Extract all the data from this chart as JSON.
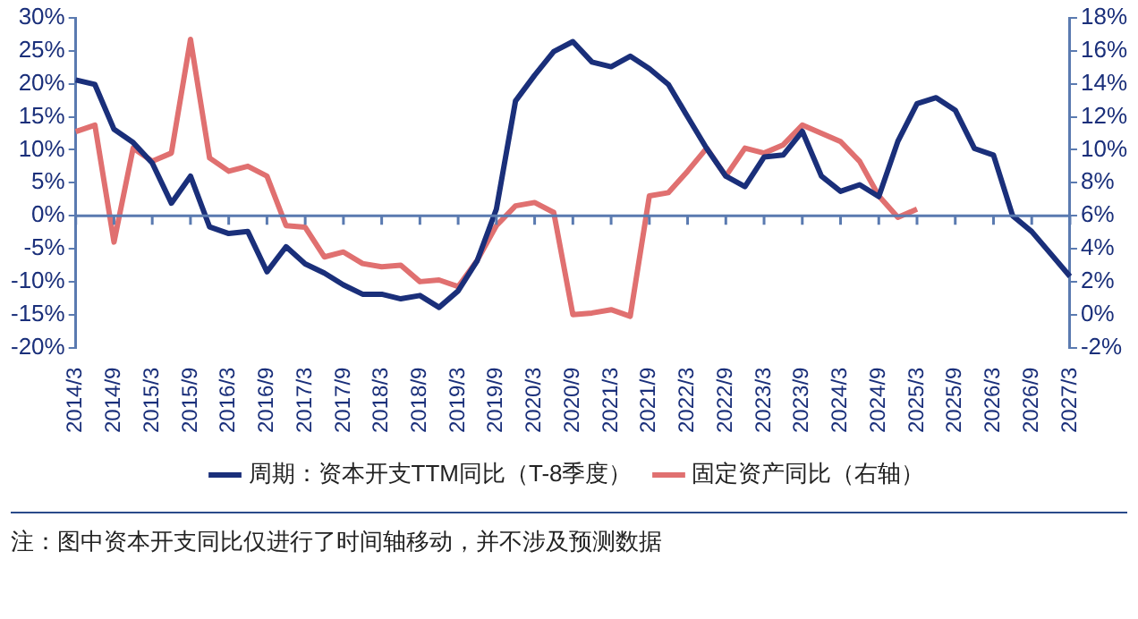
{
  "chart_data": {
    "type": "line",
    "categories": [
      "2014/3",
      null,
      "2014/9",
      null,
      "2015/3",
      null,
      "2015/9",
      null,
      "2016/3",
      null,
      "2016/9",
      null,
      "2017/3",
      null,
      "2017/9",
      null,
      "2018/3",
      null,
      "2018/9",
      null,
      "2019/3",
      null,
      "2019/9",
      null,
      "2020/3",
      null,
      "2020/9",
      null,
      "2021/3",
      null,
      "2021/9",
      null,
      "2022/3",
      null,
      "2022/9",
      null,
      "2023/3",
      null,
      "2023/9",
      null,
      "2024/3",
      null,
      "2024/9",
      null,
      "2025/3",
      null,
      "2025/9",
      null,
      "2026/3",
      null,
      "2026/9",
      null,
      "2027/3"
    ],
    "series": [
      {
        "name": "周期：资本开支TTM同比（T-8季度）",
        "color": "#1a2f7a",
        "values": [
          20.6,
          19.9,
          13.1,
          11.1,
          8,
          1.9,
          6,
          -1.7,
          -2.7,
          -2.4,
          -8.5,
          -4.7,
          -7.3,
          -8.7,
          -10.5,
          -11.9,
          -11.9,
          -12.6,
          -12.1,
          -13.9,
          -11.4,
          -6.8,
          1,
          17.4,
          21.3,
          24.9,
          26.4,
          23.3,
          22.6,
          24.2,
          22.3,
          19.9,
          15,
          10.2,
          6,
          4.4,
          8.9,
          9.2,
          12.8,
          6,
          3.7,
          4.7,
          2.9,
          11.3,
          17,
          17.9,
          16,
          10.2,
          9.2,
          0,
          -2.4,
          -5.8,
          -9.2
        ]
      },
      {
        "name": "固定资产同比（右轴）",
        "color": "#e07070",
        "axis": "y2",
        "values": [
          11.1,
          11.5,
          4.4,
          10.1,
          9.3,
          9.8,
          16.7,
          9.5,
          8.7,
          9,
          8.4,
          5.4,
          5.3,
          3.5,
          3.8,
          3.1,
          2.9,
          3,
          2,
          2.1,
          1.7,
          3.3,
          5.4,
          6.6,
          6.8,
          6.2,
          0,
          0.1,
          0.3,
          -0.1,
          7.2,
          7.4,
          8.7,
          10.1,
          8.4,
          10.1,
          9.8,
          10.3,
          11.5,
          11,
          10.5,
          9.3,
          7.2,
          5.9,
          6.4,
          null,
          null,
          null,
          null,
          null,
          null,
          null,
          null
        ]
      }
    ],
    "ylim": [
      -20,
      30
    ],
    "yticks": [
      {
        "value": -20,
        "label": "-20%"
      },
      {
        "value": -15,
        "label": "-15%"
      },
      {
        "value": -10,
        "label": "-10%"
      },
      {
        "value": -5,
        "label": "-5%"
      },
      {
        "value": 0,
        "label": "0%"
      },
      {
        "value": 5,
        "label": "5%"
      },
      {
        "value": 10,
        "label": "10%"
      },
      {
        "value": 15,
        "label": "15%"
      },
      {
        "value": 20,
        "label": "20%"
      },
      {
        "value": 25,
        "label": "25%"
      },
      {
        "value": 30,
        "label": "30%"
      }
    ],
    "y2lim": [
      -2,
      18
    ],
    "y2ticks": [
      {
        "value": -2,
        "label": "-2%"
      },
      {
        "value": 0,
        "label": "0%"
      },
      {
        "value": 2,
        "label": "2%"
      },
      {
        "value": 4,
        "label": "4%"
      },
      {
        "value": 6,
        "label": "6%"
      },
      {
        "value": 8,
        "label": "8%"
      },
      {
        "value": 10,
        "label": "10%"
      },
      {
        "value": 12,
        "label": "12%"
      },
      {
        "value": 14,
        "label": "14%"
      },
      {
        "value": 16,
        "label": "16%"
      },
      {
        "value": 18,
        "label": "18%"
      }
    ],
    "ref_lines": [
      {
        "axis": "y",
        "value": 0,
        "color": "#5a7ab0"
      }
    ],
    "grid": false,
    "legend": "bottom",
    "marker": "none",
    "line_style": "solid",
    "annotations": [
      "注：图中资本开支同比仅进行了时间轴移动，并不涉及预测数据"
    ]
  }
}
